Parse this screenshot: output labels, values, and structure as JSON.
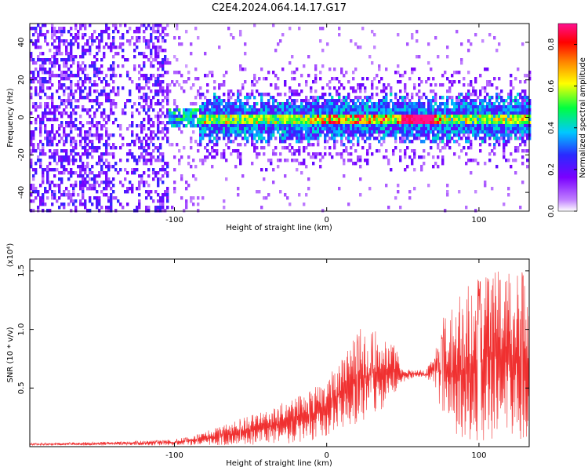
{
  "title": "C2E4.2024.064.14.17.G17",
  "colors": {
    "snr_line": "#f03030",
    "colormap": [
      "#ffffff",
      "#7a00ff",
      "#2a2aff",
      "#00c8ff",
      "#00ff40",
      "#ffff00",
      "#ff8000",
      "#ff0000",
      "#ff1090"
    ]
  },
  "chart_data": [
    {
      "type": "heatmap",
      "xlabel": "Height of straight line (km)",
      "ylabel": "Frequency (Hz)",
      "xlim": [
        -195,
        133
      ],
      "ylim": [
        -50,
        50
      ],
      "x_ticks": [
        -100,
        0,
        100
      ],
      "y_ticks": [
        -40,
        -20,
        0,
        20,
        40
      ],
      "colorbar": {
        "label": "Normalized spectral amplitude",
        "range": [
          0.0,
          0.9
        ],
        "ticks": [
          "0.0",
          "0.2",
          "0.4",
          "0.6",
          "0.8"
        ]
      },
      "features": {
        "noise_region_x": [
          -195,
          -105
        ],
        "signal_center_hz": 0,
        "strong_signal_x": [
          -8,
          75
        ],
        "peak_amplitude": 0.9
      }
    },
    {
      "type": "line",
      "xlabel": "Height of straight line (km)",
      "ylabel": "SNR (10 * v/v)",
      "y_exponent": "(x10⁴)",
      "xlim": [
        -195,
        133
      ],
      "ylim": [
        0,
        1.6
      ],
      "x_ticks": [
        -100,
        0,
        100
      ],
      "y_ticks": [
        "0.5",
        "1.0",
        "1.5"
      ],
      "y_tick_values": [
        0.5,
        1.0,
        1.5
      ],
      "envelope": {
        "x": [
          -195,
          -150,
          -100,
          -80,
          -60,
          -40,
          -20,
          0,
          10,
          20,
          35,
          40,
          45,
          50,
          55,
          60,
          65,
          70,
          75,
          80,
          90,
          95,
          100,
          105,
          110,
          120,
          133
        ],
        "min": [
          0.01,
          0.01,
          0.01,
          0.01,
          0.01,
          0.02,
          0.03,
          0.08,
          0.15,
          0.2,
          0.3,
          0.35,
          0.45,
          0.55,
          0.58,
          0.58,
          0.58,
          0.55,
          0.3,
          0.1,
          0.05,
          0.03,
          0.02,
          0.05,
          0.05,
          0.05,
          0.05
        ],
        "max": [
          0.03,
          0.04,
          0.06,
          0.12,
          0.22,
          0.32,
          0.42,
          0.55,
          0.8,
          0.95,
          1.0,
          0.95,
          0.85,
          0.68,
          0.66,
          0.66,
          0.66,
          0.75,
          1.0,
          1.15,
          1.25,
          1.35,
          1.4,
          1.5,
          1.5,
          1.5,
          1.45
        ]
      }
    }
  ]
}
